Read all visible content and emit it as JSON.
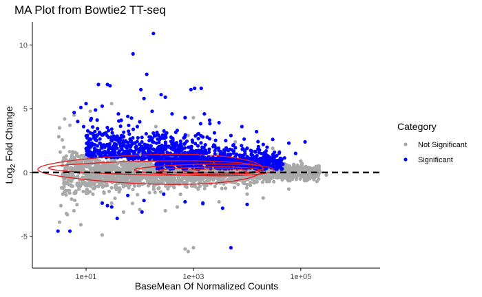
{
  "chart_data": {
    "type": "scatter",
    "title": "MA Plot from Bowtie2 TT-seq",
    "xlabel": "BaseMean Of Normalized Counts",
    "ylabel_main": "Log",
    "ylabel_sub": "2",
    "ylabel_rest": " Fold Change",
    "x_scale": "log10",
    "xlim": [
      1,
      3000000
    ],
    "ylim": [
      -7.5,
      11.8
    ],
    "x_ticks": [
      {
        "value": 10,
        "label": "1e+01"
      },
      {
        "value": 1000,
        "label": "1e+03"
      },
      {
        "value": 100000,
        "label": "1e+05"
      }
    ],
    "y_ticks": [
      {
        "value": -5,
        "label": "-5"
      },
      {
        "value": 0,
        "label": "0"
      },
      {
        "value": 5,
        "label": "5"
      },
      {
        "value": 10,
        "label": "10"
      }
    ],
    "grid": false,
    "reference_line": {
      "y": 0,
      "style": "dashed",
      "color": "#000000"
    },
    "legend": {
      "title": "Category",
      "placement": "right",
      "entries": [
        {
          "label": "Not Significant",
          "color": "#a9a9a9"
        },
        {
          "label": "Significant",
          "color": "#0000ff"
        }
      ]
    },
    "density_contour_color": "#e41a1c",
    "series": [
      {
        "name": "Not Significant",
        "color": "#a9a9a9",
        "points": [
          [
            3.2,
            3.5
          ],
          [
            3.1,
            2.8
          ],
          [
            3.3,
            1.6
          ],
          [
            3.5,
            -1.2
          ],
          [
            3.4,
            -2.6
          ],
          [
            3.2,
            -3.9
          ],
          [
            4,
            4.2
          ],
          [
            4.5,
            -3.3
          ],
          [
            5,
            3.7
          ],
          [
            6,
            4.5
          ],
          [
            8,
            -4.1
          ],
          [
            12,
            4.8
          ],
          [
            20,
            -4.9
          ],
          [
            30,
            5.4
          ],
          [
            120,
            5.8
          ],
          [
            200,
            3.6
          ],
          [
            500,
            -2.7
          ],
          [
            800,
            2.9
          ],
          [
            1000,
            4.3
          ],
          [
            1500,
            -2.5
          ],
          [
            3000,
            -2.3
          ],
          [
            6000,
            2.4
          ],
          [
            10000,
            -1.7
          ],
          [
            30000,
            1.9
          ],
          [
            100000,
            0.9
          ],
          [
            200000,
            0.4
          ],
          [
            300000,
            -0.2
          ],
          [
            200000,
            -0.7
          ],
          [
            60000,
            -1.3
          ],
          [
            20000,
            -2.0
          ],
          [
            700,
            -6.0
          ],
          [
            1000,
            -5.9
          ],
          [
            800,
            -6.2
          ],
          [
            30,
            -2.4
          ],
          [
            50,
            -3.1
          ],
          [
            100,
            -2.9
          ],
          [
            300,
            -3.0
          ]
        ]
      },
      {
        "name": "Significant",
        "color": "#0000ff",
        "points": [
          [
            180,
            10.9
          ],
          [
            75,
            9.3
          ],
          [
            135,
            7.7
          ],
          [
            25,
            6.9
          ],
          [
            17,
            6.9
          ],
          [
            28,
            6.8
          ],
          [
            105,
            6.5
          ],
          [
            900,
            6.5
          ],
          [
            1050,
            6.6
          ],
          [
            1400,
            6.6
          ],
          [
            300,
            5.9
          ],
          [
            120,
            5.8
          ],
          [
            250,
            6.1
          ],
          [
            8,
            5.1
          ],
          [
            10,
            5.4
          ],
          [
            20,
            5.2
          ],
          [
            15,
            4.9
          ],
          [
            6,
            4.7
          ],
          [
            40,
            4.6
          ],
          [
            60,
            4.4
          ],
          [
            170,
            4.8
          ],
          [
            400,
            4.6
          ],
          [
            700,
            4.3
          ],
          [
            1600,
            4.6
          ],
          [
            2000,
            4.1
          ],
          [
            3000,
            3.9
          ],
          [
            8000,
            3.6
          ],
          [
            15000,
            3.2
          ],
          [
            30000,
            2.6
          ],
          [
            60000,
            2.3
          ],
          [
            5000,
            2.9
          ],
          [
            500,
            3.3
          ],
          [
            90,
            3.6
          ],
          [
            30,
            3.4
          ],
          [
            12,
            3.1
          ],
          [
            7,
            4.0
          ],
          [
            9,
            3.6
          ],
          [
            50,
            2.8
          ],
          [
            200,
            2.9
          ],
          [
            1200,
            3.0
          ],
          [
            4000,
            2.5
          ],
          [
            20000,
            2.2
          ],
          [
            80000,
            1.5
          ],
          [
            120000,
            2.4
          ],
          [
            40000,
            1.6
          ],
          [
            10000,
            1.9
          ],
          [
            2500,
            2.1
          ],
          [
            700,
            2.3
          ],
          [
            150,
            2.5
          ],
          [
            35,
            2.6
          ],
          [
            14,
            2.9
          ],
          [
            5,
            -4.6
          ],
          [
            3,
            -4.6
          ],
          [
            20,
            -2.4
          ],
          [
            25,
            -2.6
          ],
          [
            30,
            -2.7
          ],
          [
            38,
            -3.6
          ],
          [
            110,
            -3.1
          ],
          [
            700,
            -2.3
          ],
          [
            1500,
            -2.4
          ],
          [
            5000,
            -5.9
          ],
          [
            10000,
            -2.5
          ],
          [
            3500,
            -2.8
          ],
          [
            60,
            -1.8
          ],
          [
            280,
            -1.7
          ],
          [
            120,
            -2.2
          ]
        ]
      }
    ]
  }
}
